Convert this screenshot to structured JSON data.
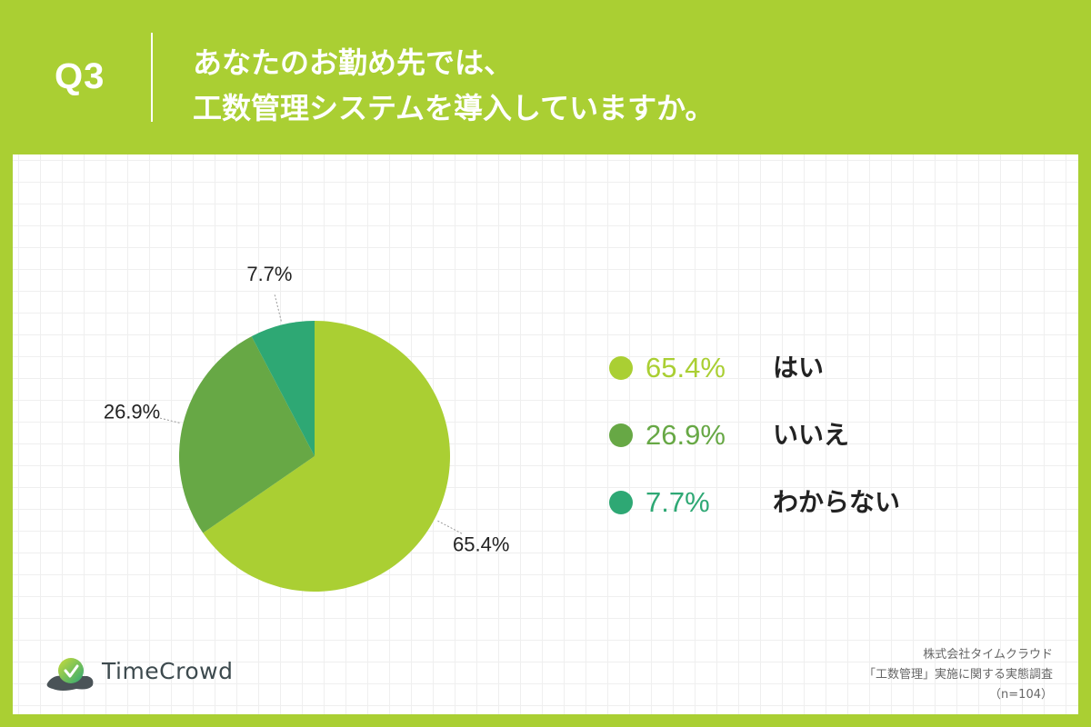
{
  "question_label": "Q3",
  "title_lines": [
    "あなたのお勤め先では、",
    "工数管理システムを導入していますか。"
  ],
  "chart_data": {
    "type": "pie",
    "slices": [
      {
        "label": "はい",
        "value": 65.4,
        "display": "65.4%",
        "color": "#aacf33"
      },
      {
        "label": "いいえ",
        "value": 26.9,
        "display": "26.9%",
        "color": "#67a845"
      },
      {
        "label": "わからない",
        "value": 7.7,
        "display": "7.7%",
        "color": "#2ea874"
      }
    ],
    "start_angle_deg": 0,
    "direction": "clockwise",
    "legend_position": "right"
  },
  "legend": [
    {
      "pct": "65.4%",
      "label": "はい",
      "color": "#aacf33"
    },
    {
      "pct": "26.9%",
      "label": "いいえ",
      "color": "#67a845"
    },
    {
      "pct": "7.7%",
      "label": "わからない",
      "color": "#2ea874"
    }
  ],
  "logo": {
    "text": "TimeCrowd",
    "icon": "timecrowd-logo-icon"
  },
  "source_lines": [
    "株式会社タイムクラウド",
    "「工数管理」実施に関する実態調査",
    "（n=104）"
  ],
  "colors": {
    "background": "#aacf33",
    "card": "#ffffff"
  }
}
